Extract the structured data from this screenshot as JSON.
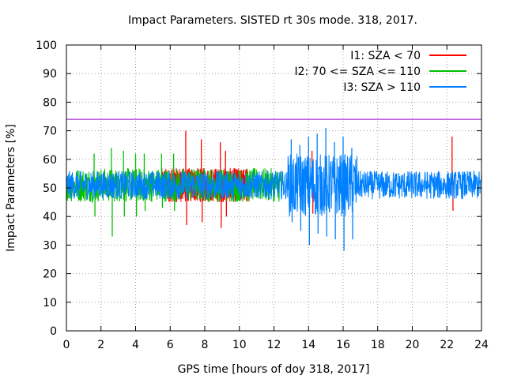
{
  "chart_data": {
    "type": "line",
    "title": "Impact Parameters. SISTED rt 30s mode. 318, 2017.",
    "xlabel": "GPS time [hours of doy 318, 2017]",
    "ylabel": "Impact Parameters [%]",
    "xlim": [
      0,
      24
    ],
    "ylim": [
      0,
      100
    ],
    "grid": true,
    "x_ticks": [
      0,
      2,
      4,
      6,
      8,
      10,
      12,
      14,
      16,
      18,
      20,
      22,
      24
    ],
    "x_tick_labels": [
      "0",
      "2",
      "4",
      "6",
      "8",
      "10",
      "12",
      "14",
      "16",
      "18",
      "20",
      "22",
      "24"
    ],
    "y_ticks": [
      0,
      10,
      20,
      30,
      40,
      50,
      60,
      70,
      80,
      90,
      100
    ],
    "y_tick_labels": [
      "0",
      "10",
      "20",
      "30",
      "40",
      "50",
      "60",
      "70",
      "80",
      "90",
      "100"
    ],
    "legend_position": "top-right",
    "threshold_line": {
      "value": 74,
      "color": "#9400d3"
    },
    "series": [
      {
        "name": "I1: SZA < 70",
        "color": "#ff0000",
        "center": 51,
        "typical_range": [
          44,
          58
        ],
        "x": [
          6.9,
          7.8,
          8.9,
          9.2,
          14.2,
          22.3
        ],
        "peaks": [
          70,
          67,
          66,
          63,
          63,
          68
        ],
        "troughs": [
          37,
          38,
          36,
          40,
          41,
          42
        ]
      },
      {
        "name": "I2: 70 <= SZA <= 110",
        "color": "#00c000",
        "center": 51,
        "typical_range": [
          43,
          58
        ],
        "x": [
          1.6,
          2.6,
          3.3,
          4.0,
          4.5,
          5.5,
          6.2
        ],
        "peaks": [
          62,
          64,
          63,
          62,
          62,
          62,
          62
        ],
        "troughs": [
          40,
          33,
          40,
          40,
          42,
          43,
          42
        ]
      },
      {
        "name": "I3: SZA > 110",
        "color": "#0080ff",
        "center": 51,
        "typical_range": [
          45,
          57
        ],
        "x": [
          13.0,
          13.5,
          14.0,
          14.5,
          15.0,
          15.5,
          16.0,
          16.5
        ],
        "peaks": [
          67,
          65,
          68,
          69,
          71,
          66,
          68,
          64
        ],
        "troughs": [
          38,
          35,
          30,
          34,
          33,
          32,
          28,
          32
        ]
      }
    ]
  }
}
